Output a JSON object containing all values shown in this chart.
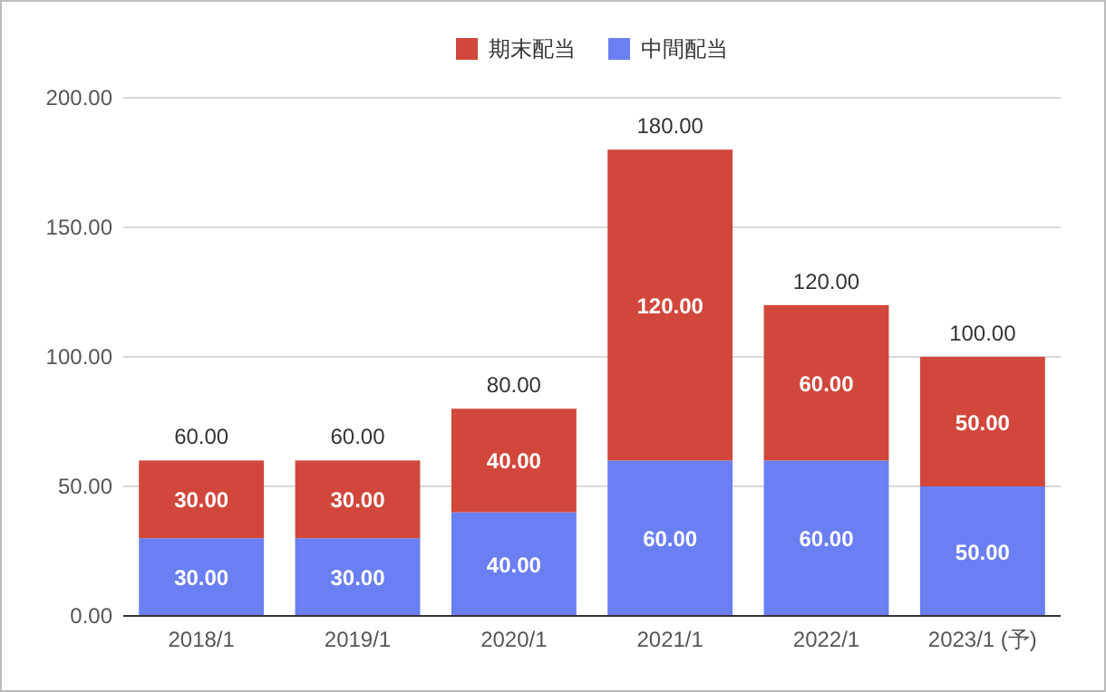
{
  "chart_data": {
    "type": "bar",
    "stacked": true,
    "categories": [
      "2018/1",
      "2019/1",
      "2020/1",
      "2021/1",
      "2022/1",
      "2023/1 (予)"
    ],
    "series": [
      {
        "name": "中間配当",
        "color": "#6a7ff2",
        "values": [
          30,
          30,
          40,
          60,
          60,
          50
        ],
        "value_labels": [
          "30.00",
          "30.00",
          "40.00",
          "60.00",
          "60.00",
          "50.00"
        ]
      },
      {
        "name": "期末配当",
        "color": "#d1473b",
        "values": [
          30,
          30,
          40,
          120,
          60,
          50
        ],
        "value_labels": [
          "30.00",
          "30.00",
          "40.00",
          "120.00",
          "60.00",
          "50.00"
        ]
      }
    ],
    "totals": [
      "60.00",
      "60.00",
      "80.00",
      "180.00",
      "120.00",
      "100.00"
    ],
    "ylim": [
      0,
      200
    ],
    "yticks": [
      {
        "value": 0,
        "label": "0.00"
      },
      {
        "value": 50,
        "label": "50.00"
      },
      {
        "value": 100,
        "label": "100.00"
      },
      {
        "value": 150,
        "label": "150.00"
      },
      {
        "value": 200,
        "label": "200.00"
      }
    ],
    "grid": "y",
    "legend": "top"
  }
}
